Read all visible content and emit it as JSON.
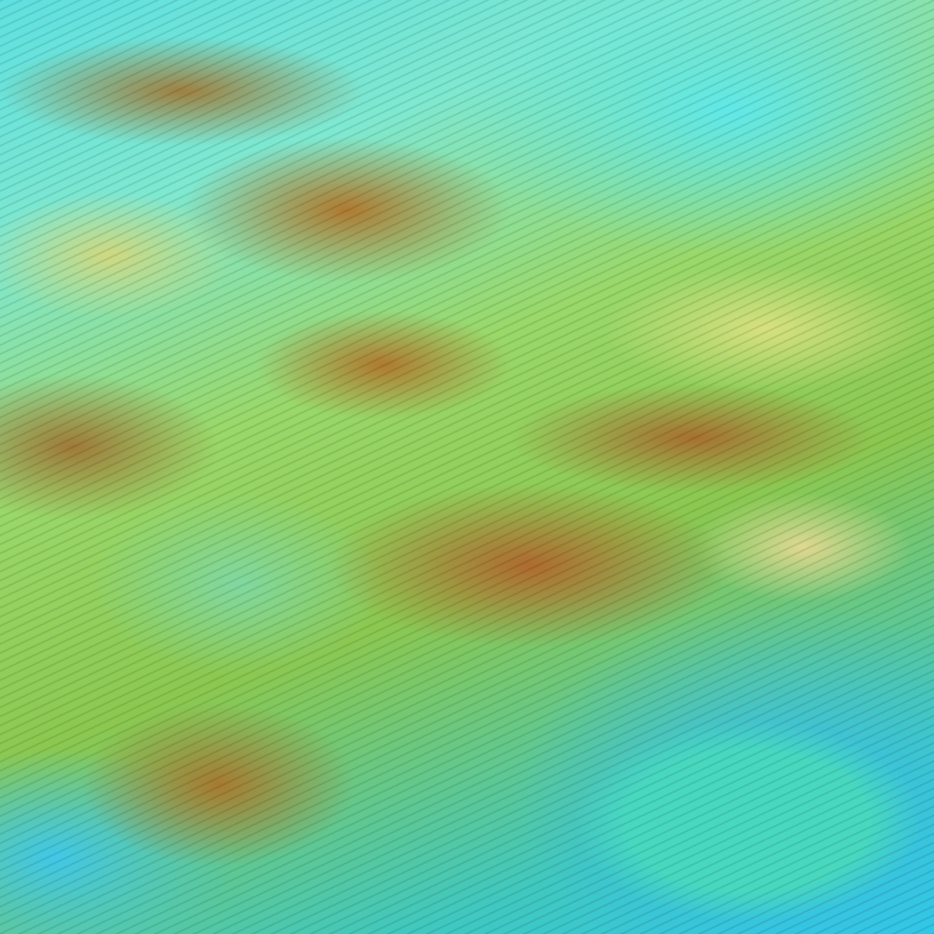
{
  "image": {
    "kind": "false-color satellite imagery",
    "palette": {
      "cyan": "#40d8e0",
      "green": "#8cc850",
      "brown": "#b07a30",
      "yellow": "#d8e080",
      "sea": "#48d8c0"
    }
  }
}
